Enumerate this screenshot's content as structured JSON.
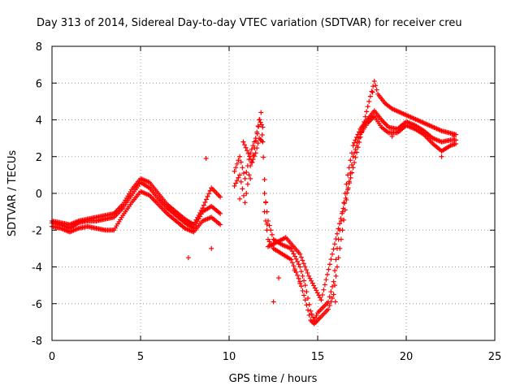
{
  "chart_data": {
    "type": "scatter",
    "title": "Day 313 of 2014, Sidereal Day-to-day VTEC variation (SDTVAR) for receiver creu",
    "xlabel": "GPS time / hours",
    "ylabel": "SDTVAR / TECUs",
    "xlim": [
      0,
      25
    ],
    "ylim": [
      -8,
      8
    ],
    "xticks": [
      0,
      5,
      10,
      15,
      20,
      25
    ],
    "yticks": [
      -8,
      -6,
      -4,
      -2,
      0,
      2,
      4,
      6,
      8
    ],
    "grid": true,
    "marker": "+",
    "color": "#ff0000",
    "series": [
      {
        "name": "SDTVAR",
        "note": "dense bands of points; values read approximately off the axes",
        "bands": [
          {
            "x": [
              0,
              0.5,
              1,
              1.5,
              2,
              2.5,
              3,
              3.5,
              4,
              4.5,
              5,
              5.5,
              6,
              6.5,
              7,
              7.5,
              8,
              8.5,
              9,
              9.5
            ],
            "y": [
              -1.6,
              -1.7,
              -1.9,
              -1.6,
              -1.5,
              -1.5,
              -1.4,
              -1.3,
              -0.8,
              -0.1,
              0.6,
              0.3,
              -0.3,
              -0.8,
              -1.2,
              -1.6,
              -1.9,
              -1.0,
              -0.7,
              -1.1
            ]
          },
          {
            "x": [
              0,
              0.5,
              1,
              1.5,
              2,
              2.5,
              3,
              3.5,
              4,
              4.5,
              5,
              5.5,
              6,
              6.5,
              7,
              7.5,
              8,
              8.5,
              9,
              9.5
            ],
            "y": [
              -1.8,
              -1.9,
              -2.1,
              -1.9,
              -1.8,
              -1.9,
              -2.0,
              -2.0,
              -1.2,
              -0.5,
              0.1,
              -0.1,
              -0.6,
              -1.1,
              -1.5,
              -1.9,
              -2.1,
              -1.5,
              -1.3,
              -1.7
            ]
          },
          {
            "x": [
              0,
              0.5,
              1,
              1.5,
              2,
              2.5,
              3,
              3.5,
              4,
              4.5,
              5,
              5.5,
              6,
              6.5,
              7,
              7.5,
              8,
              8.5,
              9,
              9.5
            ],
            "y": [
              -1.5,
              -1.6,
              -1.7,
              -1.5,
              -1.4,
              -1.3,
              -1.2,
              -1.1,
              -0.6,
              0.2,
              0.8,
              0.6,
              0.0,
              -0.6,
              -1.0,
              -1.4,
              -1.7,
              -0.8,
              0.3,
              -0.2
            ]
          },
          {
            "x": [
              10.3,
              10.6,
              10.9,
              11.2,
              11.5,
              11.7,
              11.9,
              12.0,
              12.2,
              12.5,
              13,
              13.5,
              14,
              14.3,
              14.6,
              14.8,
              15,
              15.3,
              15.6,
              15.9,
              16.1,
              16.4,
              16.7,
              17,
              17.4,
              17.8,
              18.2,
              18.6,
              19,
              19.5,
              20,
              20.5,
              21,
              21.5,
              22,
              22.5,
              22.8
            ],
            "y": [
              1.2,
              2.0,
              0.8,
              2.2,
              3.0,
              4.0,
              3.6,
              0.0,
              -1.5,
              -2.5,
              -2.8,
              -3.0,
              -4.0,
              -5.0,
              -6.4,
              -6.9,
              -6.5,
              -6.2,
              -5.9,
              -4.8,
              -3.0,
              -1.0,
              1.0,
              2.6,
              3.5,
              4.0,
              4.5,
              4.0,
              3.6,
              3.5,
              3.9,
              3.7,
              3.4,
              3.0,
              2.8,
              2.9,
              2.9
            ]
          },
          {
            "x": [
              10.3,
              10.6,
              10.9,
              11.2,
              11.5,
              11.7,
              11.9,
              12.0,
              12.2,
              12.5,
              13,
              13.5,
              14,
              14.3,
              14.6,
              14.8,
              15,
              15.3,
              15.6,
              15.9,
              16.1,
              16.4,
              16.7,
              17,
              17.4,
              17.8,
              18.2,
              18.6,
              19,
              19.5,
              20,
              20.5,
              21,
              21.5,
              22,
              22.5,
              22.8
            ],
            "y": [
              0.4,
              1.0,
              -0.5,
              1.5,
              2.2,
              3.0,
              2.8,
              -1.0,
              -2.5,
              -3.0,
              -3.3,
              -3.6,
              -4.8,
              -5.8,
              -6.9,
              -7.1,
              -6.9,
              -6.6,
              -6.3,
              -5.5,
              -4.0,
              -2.0,
              0.2,
              2.0,
              3.2,
              3.8,
              4.2,
              3.6,
              3.3,
              3.3,
              3.7,
              3.5,
              3.2,
              2.7,
              2.3,
              2.6,
              2.7
            ]
          },
          {
            "x": [
              10.8,
              11.3,
              11.8,
              12.2,
              13.2,
              14.0,
              14.5,
              15.2,
              17.9,
              18.2,
              18.4,
              18.8,
              19.2,
              22.0,
              22.8
            ],
            "y": [
              2.8,
              1.7,
              4.4,
              -2.9,
              -2.4,
              -3.3,
              -4.5,
              -5.8,
              5.0,
              6.1,
              5.4,
              4.9,
              4.6,
              3.4,
              3.2
            ]
          }
        ],
        "outliers": [
          {
            "x": 7.7,
            "y": -3.5
          },
          {
            "x": 8.7,
            "y": 1.9
          },
          {
            "x": 9.0,
            "y": -3.0
          },
          {
            "x": 10.6,
            "y": -0.3
          },
          {
            "x": 11.2,
            "y": 0.8
          },
          {
            "x": 12.5,
            "y": -5.9
          },
          {
            "x": 12.8,
            "y": -4.6
          },
          {
            "x": 13.7,
            "y": -4.2
          },
          {
            "x": 14.0,
            "y": -4.9
          },
          {
            "x": 16.0,
            "y": -5.9
          },
          {
            "x": 18.1,
            "y": 5.5
          },
          {
            "x": 19.2,
            "y": 3.1
          },
          {
            "x": 22.0,
            "y": 2.0
          },
          {
            "x": 22.7,
            "y": 3.1
          }
        ]
      }
    ]
  }
}
